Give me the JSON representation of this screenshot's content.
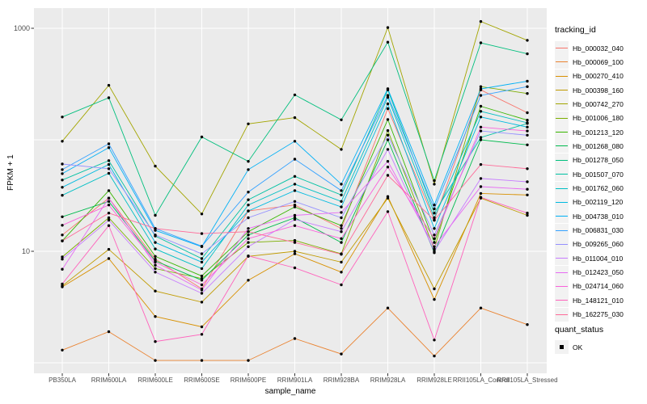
{
  "chart_data": {
    "type": "line",
    "title": "",
    "xlabel": "sample_name",
    "ylabel": "FPKM + 1",
    "y_scale": "log10",
    "ylim": [
      0.8,
      1500
    ],
    "y_tick_labels": {
      "t10": "10",
      "t1000": "1000"
    },
    "gridline_values": [
      1,
      10,
      100,
      1000
    ],
    "grid": "on",
    "legend_position": "right",
    "categories": [
      "PB350LA",
      "RRIM600LA",
      "RRIM600LE",
      "RRIM600SE",
      "RRIM600PE",
      "RRIM901LA",
      "RRIM928BA",
      "RRIM928LA",
      "RRIM928LE",
      "RRII105LA_Control",
      "RRII105LA_Stressed"
    ],
    "series": [
      {
        "name": "Hb_000032_040",
        "color": "#F8766D",
        "values": [
          14,
          30,
          8.5,
          4.6,
          23,
          26,
          16,
          190,
          19,
          280,
          175
        ]
      },
      {
        "name": "Hb_000069_100",
        "color": "#EA8331",
        "values": [
          1.3,
          1.9,
          1.05,
          1.05,
          1.05,
          1.65,
          1.2,
          3.1,
          1.15,
          3.1,
          2.2
        ]
      },
      {
        "name": "Hb_000270_410",
        "color": "#D89000",
        "values": [
          4.8,
          8.6,
          2.6,
          2.1,
          5.5,
          9.5,
          6.5,
          31,
          3.7,
          33,
          32
        ]
      },
      {
        "name": "Hb_000398_160",
        "color": "#C09B00",
        "values": [
          4.9,
          10.4,
          4.4,
          3.5,
          9,
          10,
          8,
          30,
          4.6,
          30,
          21
        ]
      },
      {
        "name": "Hb_000742_270",
        "color": "#A3A500",
        "values": [
          97,
          308,
          58,
          21.6,
          139,
          158,
          82,
          1015,
          40,
          1150,
          780
        ]
      },
      {
        "name": "Hb_001006_180",
        "color": "#7CAE00",
        "values": [
          8.9,
          20,
          7,
          5.7,
          12,
          12.5,
          9.5,
          121,
          10.5,
          300,
          260
        ]
      },
      {
        "name": "Hb_001213_120",
        "color": "#39B600",
        "values": [
          12.4,
          35,
          9,
          6,
          15,
          25,
          17,
          152,
          12,
          200,
          150
        ]
      },
      {
        "name": "Hb_001268_080",
        "color": "#00BB4E",
        "values": [
          20.4,
          28,
          8.2,
          5.5,
          14,
          20,
          12,
          100,
          9.7,
          100,
          90
        ]
      },
      {
        "name": "Hb_001278_050",
        "color": "#00BF7D",
        "values": [
          160,
          238,
          21,
          106,
          64,
          253,
          151,
          750,
          43,
          740,
          590
        ]
      },
      {
        "name": "Hb_001507_070",
        "color": "#00C1A3",
        "values": [
          43.6,
          65,
          13.7,
          8.6,
          29,
          47,
          32,
          280,
          22,
          105,
          140
        ]
      },
      {
        "name": "Hb_001762_060",
        "color": "#00BFC4",
        "values": [
          31.8,
          50,
          10.5,
          7,
          26,
          40,
          28,
          240,
          20,
          180,
          142
        ]
      },
      {
        "name": "Hb_002119_120",
        "color": "#00BAE0",
        "values": [
          37.5,
          60,
          12,
          8,
          23,
          35,
          25,
          210,
          16,
          160,
          130
        ]
      },
      {
        "name": "Hb_004738_010",
        "color": "#00B0F6",
        "values": [
          49.7,
          85,
          15.4,
          11,
          54,
          97,
          40,
          287,
          26,
          286,
          335
        ]
      },
      {
        "name": "Hb_006831_030",
        "color": "#35A2FF",
        "values": [
          54,
          92,
          16,
          11.1,
          34,
          67,
          35,
          250,
          24,
          250,
          300
        ]
      },
      {
        "name": "Hb_009265_060",
        "color": "#9590FF",
        "values": [
          60.6,
          55,
          14,
          9.5,
          20,
          28,
          20,
          110,
          14,
          120,
          110
        ]
      },
      {
        "name": "Hb_011004_010",
        "color": "#C77CFF",
        "values": [
          8.5,
          19,
          6.5,
          4.2,
          11,
          19.3,
          15,
          82,
          10,
          45,
          42
        ]
      },
      {
        "name": "Hb_012423_050",
        "color": "#E76BF3",
        "values": [
          6.9,
          30,
          7.5,
          4.5,
          16,
          21,
          22.3,
          64,
          11,
          38,
          36
        ]
      },
      {
        "name": "Hb_024714_060",
        "color": "#FA62DB",
        "values": [
          17.1,
          26,
          8,
          5,
          13,
          17,
          13,
          57,
          13,
          130,
          120
        ]
      },
      {
        "name": "Hb_148121_010",
        "color": "#FF62BC",
        "values": [
          5.1,
          17,
          1.55,
          1.8,
          9.1,
          7.1,
          5,
          22.7,
          1.6,
          30.5,
          22
        ]
      },
      {
        "name": "Hb_162275_030",
        "color": "#FF6A98",
        "values": [
          12.4,
          22,
          16,
          14.4,
          15,
          12,
          9.4,
          48,
          19,
          60,
          55
        ]
      }
    ],
    "point_marker": {
      "shape": "circle",
      "color": "#000000"
    },
    "legend": {
      "title": "tracking_id"
    },
    "legend2": {
      "title": "quant_status",
      "items": [
        {
          "label": "OK"
        }
      ]
    },
    "colors": {
      "panel_bg": "#EBEBEB",
      "grid": "#FFFFFF",
      "axis_text": "#4D4D4D",
      "legend_key_bg": "#F2F2F2",
      "point": "#000000"
    }
  }
}
